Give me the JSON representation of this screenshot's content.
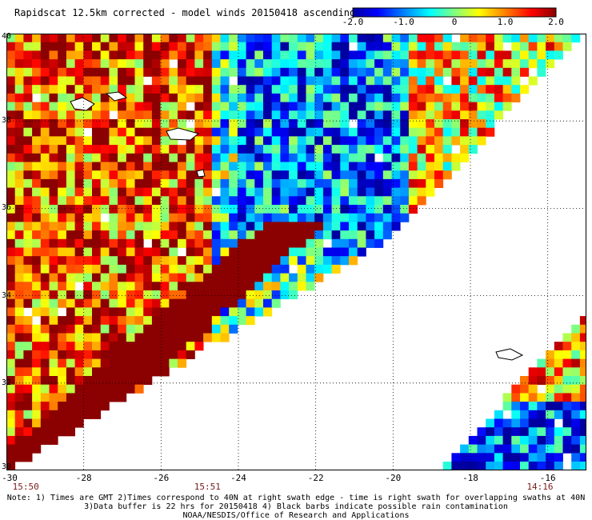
{
  "title": "Rapidscat 12.5km corrected - model winds 20150418 ascending",
  "colorbar": {
    "ticks": [
      "-2.0",
      "-1.0",
      "0",
      "1.0",
      "2.0"
    ],
    "tick_values": [
      -2.0,
      -1.0,
      0,
      1.0,
      2.0
    ],
    "range": [
      -2.0,
      2.0
    ],
    "colors": [
      "#0000a0",
      "#0000ff",
      "#0080ff",
      "#00ffff",
      "#80ff80",
      "#ffff00",
      "#ff8000",
      "#ff0000",
      "#8b0000"
    ]
  },
  "map": {
    "lon_ticks": [
      "-30",
      "-28",
      "-26",
      "-24",
      "-22",
      "-20",
      "-18",
      "-16"
    ],
    "lon_values": [
      -30,
      -28,
      -26,
      -24,
      -22,
      -20,
      -18,
      -16
    ],
    "lat_ticks": [
      "40",
      "38",
      "36",
      "34",
      "32",
      "30"
    ],
    "lat_values": [
      40,
      38,
      36,
      34,
      32,
      30
    ],
    "lon_range": [
      -30,
      -15
    ],
    "lat_range": [
      30,
      40
    ],
    "gridlines": "dotted",
    "times": [
      {
        "label": "15:50",
        "lon": -29.5
      },
      {
        "label": "15:51",
        "lon": -24.8
      },
      {
        "label": "14:16",
        "lon": -16.2
      }
    ]
  },
  "notes": [
    "Note: 1) Times are GMT 2)Times correspond to 40N at right swath edge - time is right swath for overlapping swaths at 40N",
    "3)Data buffer is 22 hrs for 20150418 4) Black barbs indicate possible rain contamination",
    "NOAA/NESDIS/Office of Research and Applications"
  ]
}
